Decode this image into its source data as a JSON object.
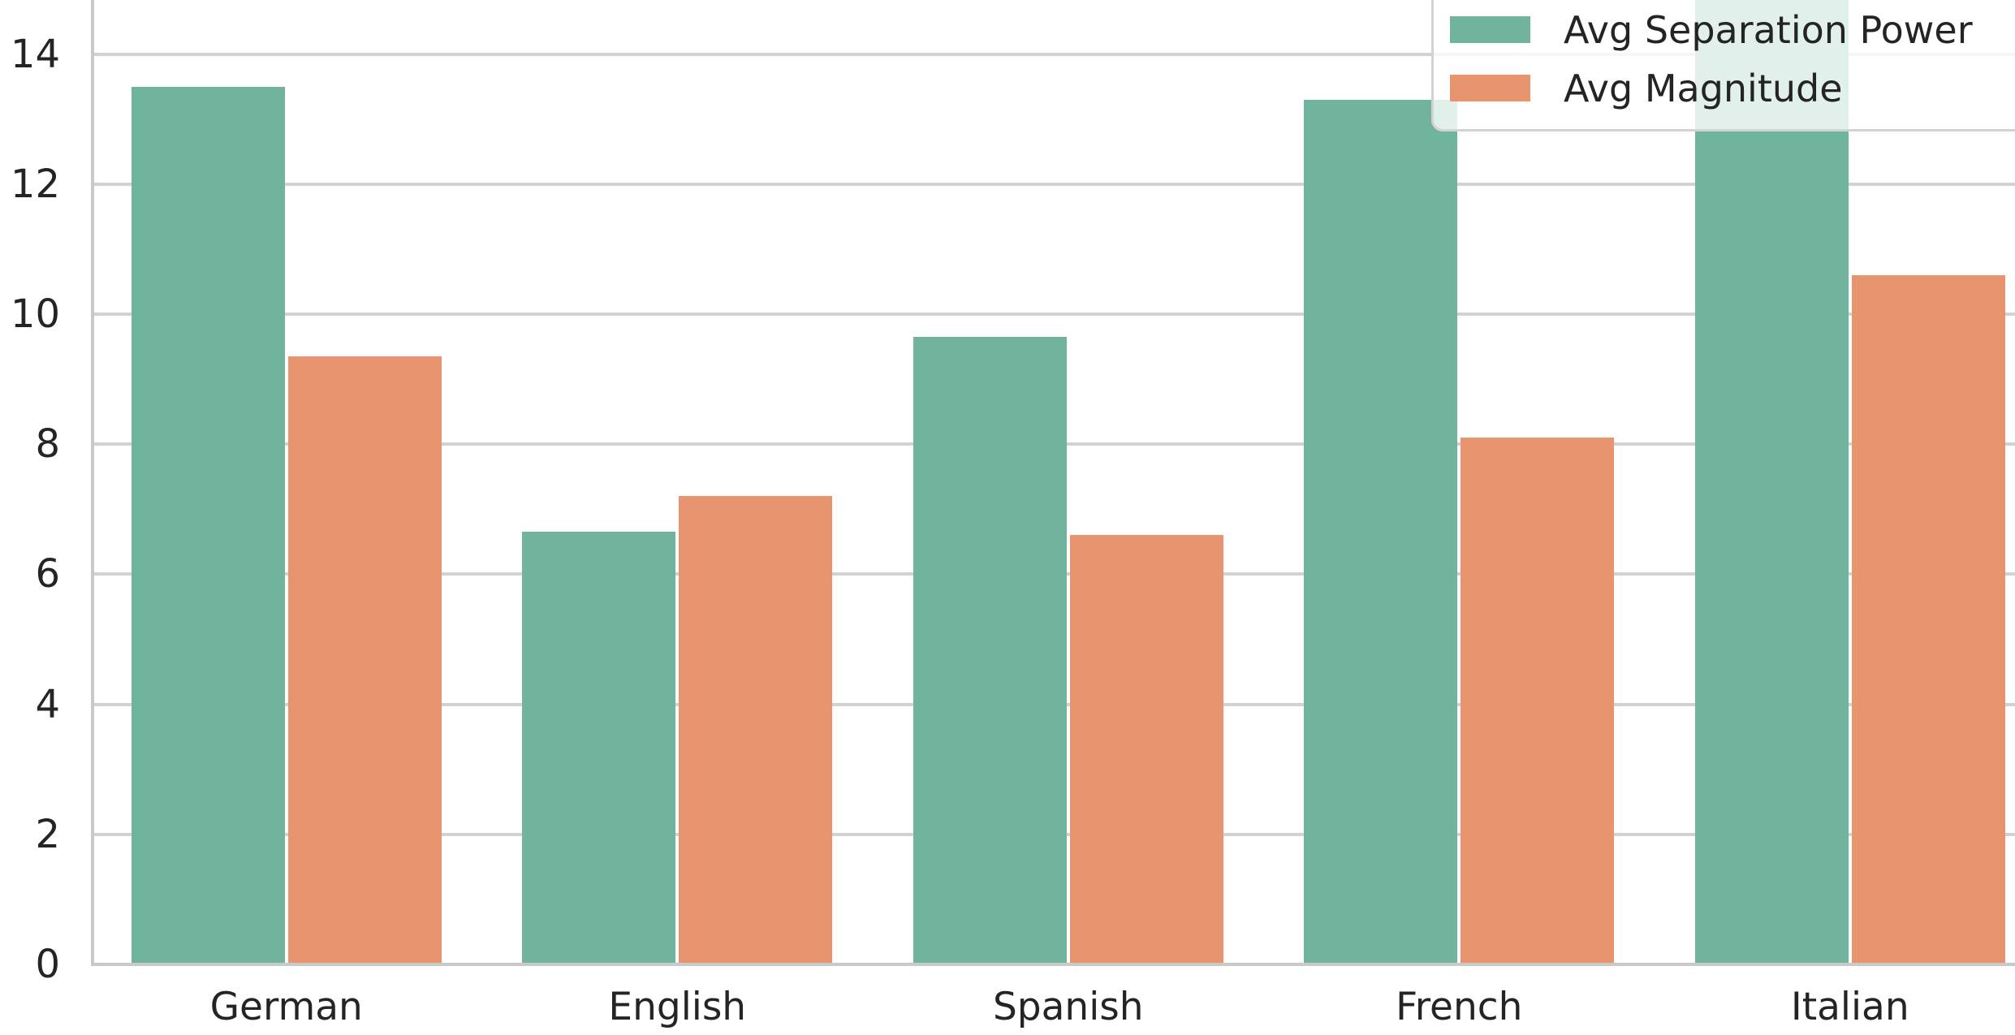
{
  "chart_data": {
    "type": "bar",
    "title": "",
    "xlabel": "",
    "ylabel": "",
    "categories": [
      "German",
      "English",
      "Spanish",
      "French",
      "Italian"
    ],
    "series": [
      {
        "name": "Avg Separation Power",
        "color": "#71b49e",
        "values": [
          13.5,
          6.65,
          9.65,
          13.3,
          14.9
        ],
        "note": "Italian bar is clipped at the top edge of the image (value >= 14.8)"
      },
      {
        "name": "Avg Magnitude",
        "color": "#e8946f",
        "values": [
          9.35,
          7.2,
          6.6,
          8.1,
          10.6
        ]
      }
    ],
    "yticks": [
      0,
      2,
      4,
      6,
      8,
      10,
      12,
      14
    ],
    "ylim": [
      0,
      14.8
    ],
    "grid": "horizontal",
    "gridline_color": "#d2d2d2",
    "axis_spine_color": "#c9c9c9",
    "text_color": "#242424",
    "legend_position": "upper right",
    "legend_frame": "rounded, semi-transparent white, clipped at top and right edges"
  }
}
